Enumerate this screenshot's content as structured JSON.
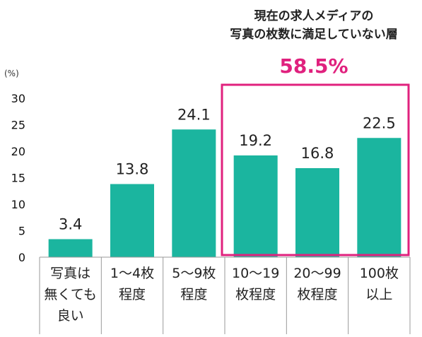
{
  "chart_data": {
    "type": "bar",
    "unit_label": "(%)",
    "ylim": [
      0,
      30
    ],
    "yticks": [
      "0",
      "5",
      "10",
      "15",
      "20",
      "25",
      "30"
    ],
    "grid": false,
    "categories": [
      [
        "写真は",
        "無くても",
        "良い"
      ],
      [
        "1～4枚",
        "程度"
      ],
      [
        "5～9枚",
        "程度"
      ],
      [
        "10～19",
        "枚程度"
      ],
      [
        "20～99",
        "枚程度"
      ],
      [
        "100枚",
        "以上"
      ]
    ],
    "values": [
      3.4,
      13.8,
      24.1,
      19.2,
      16.8,
      22.5
    ],
    "value_labels": [
      "3.4",
      "13.8",
      "24.1",
      "19.2",
      "16.8",
      "22.5"
    ],
    "bar_color": "#1bb59f",
    "annotation": {
      "title_lines": [
        "現在の求人メディアの",
        "写真の枚数に満足していない層"
      ],
      "value": "58.5%",
      "color": "#e0217e",
      "highlight_categories": [
        3,
        4,
        5
      ]
    }
  }
}
